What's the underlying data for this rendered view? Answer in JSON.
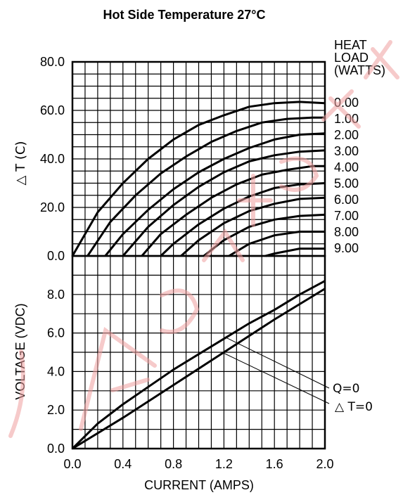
{
  "chart_data": [
    {
      "type": "line",
      "title": "Hot Side Temperature 27°C",
      "xlabel": "CURRENT (AMPS)",
      "ylabel": "△ T (C)",
      "xlim": [
        0,
        2
      ],
      "ylim": [
        0,
        80
      ],
      "x_ticks": [
        "0.0",
        "0.4",
        "0.8",
        "1.2",
        "1.6",
        "2.0"
      ],
      "y_ticks": [
        "0.0",
        "20.0",
        "40.0",
        "60.0",
        "80.0"
      ],
      "grid": true,
      "legend_title": [
        "HEAT",
        "LOAD",
        "(WATTS)"
      ],
      "series": [
        {
          "name": "0.00",
          "x": [
            0.0,
            0.2,
            0.4,
            0.6,
            0.8,
            1.0,
            1.2,
            1.4,
            1.6,
            1.8,
            2.0
          ],
          "y": [
            0.0,
            18.0,
            30.0,
            40.0,
            48.0,
            54.0,
            58.0,
            61.5,
            63.0,
            63.5,
            63.0
          ]
        },
        {
          "name": "1.00",
          "x": [
            0.12,
            0.3,
            0.5,
            0.7,
            0.9,
            1.1,
            1.3,
            1.5,
            1.7,
            1.9,
            2.0
          ],
          "y": [
            0.0,
            14.0,
            25.0,
            34.0,
            41.0,
            47.0,
            51.5,
            55.0,
            56.5,
            57.0,
            57.0
          ]
        },
        {
          "name": "2.00",
          "x": [
            0.26,
            0.4,
            0.6,
            0.8,
            1.0,
            1.2,
            1.4,
            1.6,
            1.8,
            2.0
          ],
          "y": [
            0.0,
            9.0,
            19.0,
            27.5,
            34.5,
            40.0,
            44.5,
            48.0,
            50.0,
            50.5
          ]
        },
        {
          "name": "3.00",
          "x": [
            0.4,
            0.6,
            0.8,
            1.0,
            1.2,
            1.4,
            1.6,
            1.8,
            2.0
          ],
          "y": [
            0.0,
            12.0,
            21.0,
            28.5,
            34.5,
            39.0,
            41.5,
            43.0,
            43.5
          ]
        },
        {
          "name": "4.00",
          "x": [
            0.55,
            0.7,
            0.9,
            1.1,
            1.3,
            1.5,
            1.7,
            1.9,
            2.0
          ],
          "y": [
            0.0,
            9.0,
            17.0,
            24.0,
            29.5,
            33.5,
            35.5,
            37.0,
            37.0
          ]
        },
        {
          "name": "5.00",
          "x": [
            0.7,
            0.8,
            1.0,
            1.2,
            1.4,
            1.6,
            1.8,
            2.0
          ],
          "y": [
            0.0,
            5.0,
            13.0,
            19.5,
            24.5,
            28.0,
            29.5,
            30.0
          ]
        },
        {
          "name": "6.00",
          "x": [
            0.86,
            1.0,
            1.2,
            1.4,
            1.6,
            1.8,
            2.0
          ],
          "y": [
            0.0,
            6.5,
            13.5,
            18.5,
            21.5,
            23.5,
            24.0
          ]
        },
        {
          "name": "7.00",
          "x": [
            1.04,
            1.2,
            1.4,
            1.6,
            1.8,
            2.0
          ],
          "y": [
            0.0,
            6.5,
            12.0,
            15.0,
            16.5,
            17.0
          ]
        },
        {
          "name": "8.00",
          "x": [
            1.24,
            1.4,
            1.6,
            1.8,
            2.0
          ],
          "y": [
            0.0,
            5.0,
            8.5,
            10.0,
            10.0
          ]
        },
        {
          "name": "9.00",
          "x": [
            1.53,
            1.6,
            1.8,
            2.0
          ],
          "y": [
            0.0,
            1.0,
            3.0,
            3.0
          ]
        }
      ]
    },
    {
      "type": "line",
      "xlabel": "CURRENT (AMPS)",
      "ylabel": "VOLTAGE (VDC)",
      "xlim": [
        0,
        2
      ],
      "ylim": [
        0,
        10
      ],
      "x_ticks": [
        "0.0",
        "0.4",
        "0.8",
        "1.2",
        "1.6",
        "2.0"
      ],
      "y_ticks": [
        "0.0",
        "2.0",
        "4.0",
        "6.0",
        "8.0"
      ],
      "grid": true,
      "series": [
        {
          "name": "Q=0",
          "x": [
            0.0,
            0.2,
            0.4,
            0.6,
            0.8,
            1.0,
            1.2,
            1.4,
            1.6,
            1.8,
            2.0
          ],
          "y": [
            0.0,
            1.3,
            2.3,
            3.2,
            4.1,
            4.9,
            5.7,
            6.5,
            7.2,
            8.0,
            8.7
          ]
        },
        {
          "name": "△ T=0",
          "x": [
            0.0,
            0.4,
            0.8,
            1.2,
            1.6,
            2.0
          ],
          "y": [
            0.0,
            1.6,
            3.3,
            5.0,
            6.7,
            8.3
          ]
        }
      ]
    }
  ]
}
